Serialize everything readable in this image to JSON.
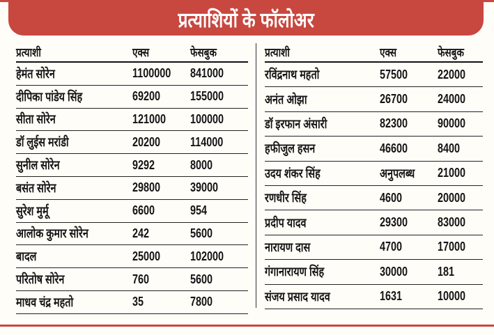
{
  "title": "प्रत्याशियों के फॉलोअर",
  "headers": {
    "name": "प्रत्याशी",
    "x": "एक्स",
    "facebook": "फेसबुक"
  },
  "left_rows": [
    {
      "name": "हेमंत सोरेन",
      "x": "1100000",
      "facebook": "841000"
    },
    {
      "name": "दीपिका पांडेय सिंह",
      "x": "69200",
      "facebook": "155000"
    },
    {
      "name": "सीता सोरेन",
      "x": "121000",
      "facebook": "100000"
    },
    {
      "name": "डॉ लुईस मरांडी",
      "x": "20200",
      "facebook": "114000"
    },
    {
      "name": "सुनील सोरेन",
      "x": "9292",
      "facebook": "8000"
    },
    {
      "name": "बसंत सोरेन",
      "x": "29800",
      "facebook": "39000"
    },
    {
      "name": "सुरेश मुर्मू",
      "x": "6600",
      "facebook": "954"
    },
    {
      "name": "आलोक कुमार सोरेन",
      "x": "242",
      "facebook": "5600"
    },
    {
      "name": "बादल",
      "x": "25000",
      "facebook": "102000"
    },
    {
      "name": "परितोष सोरेन",
      "x": "760",
      "facebook": "5600"
    },
    {
      "name": "माधव चंद्र महतो",
      "x": "35",
      "facebook": "7800"
    }
  ],
  "right_rows": [
    {
      "name": "रविंद्रनाथ महतो",
      "x": "57500",
      "facebook": "22000"
    },
    {
      "name": "अनंत ओझा",
      "x": "26700",
      "facebook": "24000"
    },
    {
      "name": "डॉ इरफान अंसारी",
      "x": "82300",
      "facebook": "90000"
    },
    {
      "name": "हफीजुल हसन",
      "x": "46600",
      "facebook": "8400"
    },
    {
      "name": "उदय शंकर सिंह",
      "x": "अनुपलब्ध",
      "facebook": "21000"
    },
    {
      "name": "रणधीर सिंह",
      "x": "4600",
      "facebook": "20000"
    },
    {
      "name": "प्रदीप यादव",
      "x": "29300",
      "facebook": "83000"
    },
    {
      "name": "नारायण दास",
      "x": "4700",
      "facebook": "17000"
    },
    {
      "name": "गंगानारायण सिंह",
      "x": "30000",
      "facebook": "181"
    },
    {
      "name": "संजय प्रसाद यादव",
      "x": "1631",
      "facebook": "10000"
    }
  ],
  "colors": {
    "accent": "#c8473f"
  }
}
